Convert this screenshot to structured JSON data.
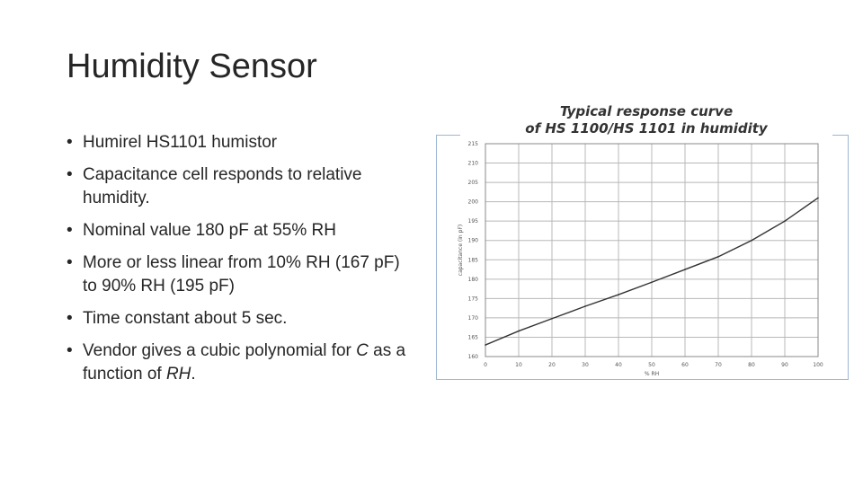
{
  "slide": {
    "title": "Humidity Sensor",
    "bullets": [
      {
        "dot": "•",
        "text": "Humirel HS1101 humistor"
      },
      {
        "dot": "•",
        "text": "Capacitance cell responds to relative humidity."
      },
      {
        "dot": "•",
        "text": "Nominal value 180 pF at 55% RH"
      },
      {
        "dot": "•",
        "text": "More or less linear from 10% RH (167 pF) to 90% RH (195 pF)"
      },
      {
        "dot": "•",
        "text": "Time constant about 5 sec."
      },
      {
        "dot": "•",
        "parts": [
          "Vendor gives a cubic polynomial for ",
          "C",
          " as a function of ",
          "RH",
          "."
        ]
      }
    ]
  },
  "chart_data": {
    "type": "line",
    "title_line1": "Typical response curve",
    "title_line2": "of HS 1100/HS 1101 in humidity",
    "xlabel": "% RH",
    "ylabel": "capacitance (in pF)",
    "xlim": [
      0,
      100
    ],
    "ylim": [
      160,
      215
    ],
    "xticks": [
      0,
      10,
      20,
      30,
      40,
      50,
      60,
      70,
      80,
      90,
      100
    ],
    "yticks": [
      160,
      165,
      170,
      175,
      180,
      185,
      190,
      195,
      200,
      205,
      210,
      215
    ],
    "grid": true,
    "line_color": "#333333",
    "series": [
      {
        "x": [
          0,
          10,
          20,
          30,
          40,
          50,
          60,
          70,
          80,
          90,
          100
        ],
        "y": [
          163,
          166.6,
          169.8,
          173,
          176,
          179.2,
          182.5,
          185.8,
          190,
          195,
          201
        ]
      }
    ]
  }
}
